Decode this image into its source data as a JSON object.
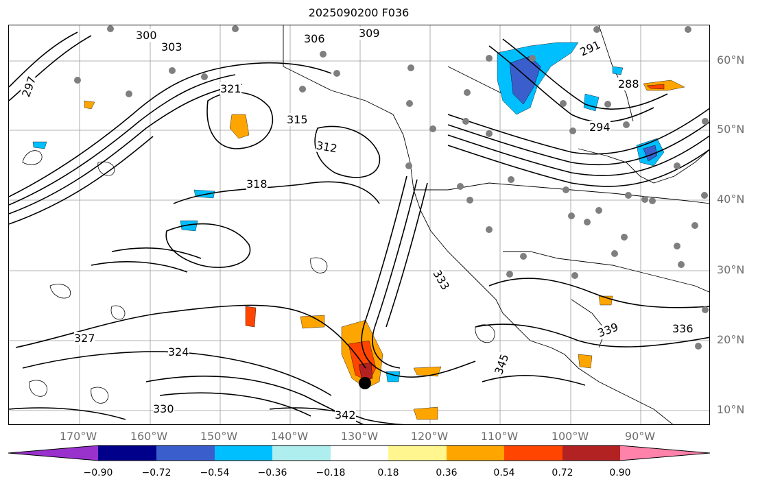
{
  "title": "2025090200 F036",
  "map": {
    "latitude_labels": [
      "60°N",
      "50°N",
      "40°N",
      "30°N",
      "20°N",
      "10°N"
    ],
    "longitude_labels": [
      "170°W",
      "160°W",
      "150°W",
      "140°W",
      "130°W",
      "120°W",
      "110°W",
      "100°W",
      "90°W"
    ],
    "contour_labels": [
      "297",
      "300",
      "303",
      "306",
      "309",
      "312",
      "315",
      "318",
      "321",
      "324",
      "327",
      "330",
      "333",
      "336",
      "339",
      "342",
      "345",
      "288",
      "291",
      "294"
    ]
  },
  "colorbar": {
    "colors": [
      "#9932cc",
      "#00008b",
      "#3a5fcd",
      "#00bfff",
      "#afeeee",
      "#ffffff",
      "#fff68f",
      "#ffa500",
      "#ff4500",
      "#b22222",
      "#ff82ab"
    ],
    "tick_labels": [
      "−0.90",
      "−0.72",
      "−0.54",
      "−0.36",
      "−0.18",
      "0.18",
      "0.36",
      "0.54",
      "0.72",
      "0.90"
    ]
  }
}
